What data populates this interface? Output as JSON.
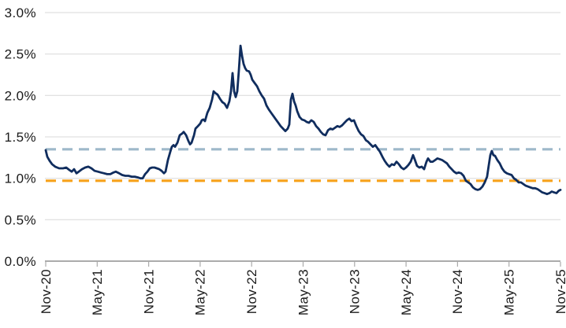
{
  "chart_data": {
    "type": "line",
    "title": "",
    "xlabel": "",
    "ylabel": "",
    "grid": true,
    "legend_position": "none",
    "colors": {
      "line": "#102D5E",
      "upper_reference": "#9EB9CA",
      "lower_reference": "#F7A11A",
      "gridline": "#D9D9D9",
      "axis": "#ABABAB",
      "text": "#1A1A1A",
      "background": "#FFFFFF"
    },
    "y_axis": {
      "min": 0.0,
      "max": 3.0,
      "step": 0.5,
      "unit": "%",
      "ticks": [
        {
          "value": 0.0,
          "label": "0.0%"
        },
        {
          "value": 0.5,
          "label": "0.5%"
        },
        {
          "value": 1.0,
          "label": "1.0%"
        },
        {
          "value": 1.5,
          "label": "1.5%"
        },
        {
          "value": 2.0,
          "label": "2.0%"
        },
        {
          "value": 2.5,
          "label": "2.5%"
        },
        {
          "value": 3.0,
          "label": "3.0%"
        }
      ]
    },
    "x_axis": {
      "unit": "month-year",
      "range_months": 60,
      "ticks": [
        {
          "month": 0,
          "label": "Nov-20"
        },
        {
          "month": 6,
          "label": "May-21"
        },
        {
          "month": 12,
          "label": "Nov-21"
        },
        {
          "month": 18,
          "label": "May-22"
        },
        {
          "month": 24,
          "label": "Nov-22"
        },
        {
          "month": 30,
          "label": "May-23"
        },
        {
          "month": 36,
          "label": "Nov-23"
        },
        {
          "month": 42,
          "label": "May-24"
        },
        {
          "month": 48,
          "label": "Nov-24"
        },
        {
          "month": 54,
          "label": "May-25"
        },
        {
          "month": 60,
          "label": "Nov-25"
        }
      ]
    },
    "reference_lines": [
      {
        "name": "upper-dashed-average",
        "value": 1.35,
        "style": "dashed",
        "color_key": "upper_reference"
      },
      {
        "name": "lower-dashed-average",
        "value": 0.97,
        "style": "dashed",
        "color_key": "lower_reference"
      }
    ],
    "series": [
      {
        "name": "main-line",
        "color_key": "line",
        "points": [
          [
            0,
            1.34
          ],
          [
            0.18,
            1.26
          ],
          [
            0.46,
            1.21
          ],
          [
            0.74,
            1.17
          ],
          [
            1.1,
            1.14
          ],
          [
            1.56,
            1.12
          ],
          [
            2.02,
            1.12
          ],
          [
            2.39,
            1.13
          ],
          [
            2.76,
            1.1
          ],
          [
            3.03,
            1.08
          ],
          [
            3.31,
            1.11
          ],
          [
            3.58,
            1.06
          ],
          [
            3.86,
            1.08
          ],
          [
            4.23,
            1.11
          ],
          [
            4.59,
            1.13
          ],
          [
            4.96,
            1.14
          ],
          [
            5.33,
            1.12
          ],
          [
            5.7,
            1.09
          ],
          [
            6.06,
            1.08
          ],
          [
            6.43,
            1.07
          ],
          [
            6.8,
            1.06
          ],
          [
            7.17,
            1.05
          ],
          [
            7.53,
            1.05
          ],
          [
            7.9,
            1.07
          ],
          [
            8.18,
            1.08
          ],
          [
            8.55,
            1.06
          ],
          [
            8.91,
            1.04
          ],
          [
            9.28,
            1.03
          ],
          [
            9.65,
            1.03
          ],
          [
            10.02,
            1.02
          ],
          [
            10.38,
            1.02
          ],
          [
            10.75,
            1.01
          ],
          [
            11.03,
            1.0
          ],
          [
            11.3,
            1.0
          ],
          [
            11.58,
            1.05
          ],
          [
            11.85,
            1.08
          ],
          [
            12.13,
            1.12
          ],
          [
            12.4,
            1.13
          ],
          [
            12.68,
            1.13
          ],
          [
            12.96,
            1.12
          ],
          [
            13.23,
            1.11
          ],
          [
            13.51,
            1.09
          ],
          [
            13.78,
            1.06
          ],
          [
            13.97,
            1.08
          ],
          [
            14.24,
            1.22
          ],
          [
            14.52,
            1.32
          ],
          [
            14.7,
            1.38
          ],
          [
            14.89,
            1.4
          ],
          [
            15.07,
            1.38
          ],
          [
            15.35,
            1.43
          ],
          [
            15.62,
            1.52
          ],
          [
            15.9,
            1.54
          ],
          [
            16.08,
            1.56
          ],
          [
            16.36,
            1.52
          ],
          [
            16.63,
            1.45
          ],
          [
            16.82,
            1.41
          ],
          [
            17,
            1.43
          ],
          [
            17.28,
            1.52
          ],
          [
            17.46,
            1.6
          ],
          [
            17.74,
            1.63
          ],
          [
            18.01,
            1.66
          ],
          [
            18.19,
            1.7
          ],
          [
            18.38,
            1.71
          ],
          [
            18.56,
            1.69
          ],
          [
            18.84,
            1.79
          ],
          [
            19.11,
            1.85
          ],
          [
            19.39,
            1.95
          ],
          [
            19.57,
            2.05
          ],
          [
            19.76,
            2.03
          ],
          [
            20.03,
            2.01
          ],
          [
            20.31,
            1.96
          ],
          [
            20.58,
            1.92
          ],
          [
            20.86,
            1.9
          ],
          [
            21.13,
            1.85
          ],
          [
            21.41,
            1.93
          ],
          [
            21.59,
            2.05
          ],
          [
            21.78,
            2.27
          ],
          [
            21.96,
            2.05
          ],
          [
            22.14,
            1.98
          ],
          [
            22.33,
            2.05
          ],
          [
            22.51,
            2.3
          ],
          [
            22.7,
            2.6
          ],
          [
            22.88,
            2.48
          ],
          [
            23.06,
            2.38
          ],
          [
            23.25,
            2.33
          ],
          [
            23.43,
            2.3
          ],
          [
            23.71,
            2.29
          ],
          [
            23.89,
            2.25
          ],
          [
            24.07,
            2.19
          ],
          [
            24.35,
            2.15
          ],
          [
            24.63,
            2.11
          ],
          [
            24.9,
            2.05
          ],
          [
            25.18,
            2.0
          ],
          [
            25.45,
            1.96
          ],
          [
            25.73,
            1.88
          ],
          [
            26,
            1.83
          ],
          [
            26.28,
            1.79
          ],
          [
            26.55,
            1.75
          ],
          [
            26.83,
            1.71
          ],
          [
            27.11,
            1.67
          ],
          [
            27.38,
            1.63
          ],
          [
            27.66,
            1.6
          ],
          [
            27.93,
            1.57
          ],
          [
            28.21,
            1.6
          ],
          [
            28.39,
            1.65
          ],
          [
            28.58,
            1.95
          ],
          [
            28.76,
            2.02
          ],
          [
            28.94,
            1.93
          ],
          [
            29.13,
            1.88
          ],
          [
            29.31,
            1.81
          ],
          [
            29.59,
            1.74
          ],
          [
            29.86,
            1.71
          ],
          [
            30.14,
            1.7
          ],
          [
            30.41,
            1.68
          ],
          [
            30.69,
            1.67
          ],
          [
            30.96,
            1.7
          ],
          [
            31.24,
            1.68
          ],
          [
            31.52,
            1.63
          ],
          [
            31.79,
            1.6
          ],
          [
            32.07,
            1.56
          ],
          [
            32.34,
            1.53
          ],
          [
            32.62,
            1.52
          ],
          [
            32.9,
            1.58
          ],
          [
            33.17,
            1.6
          ],
          [
            33.45,
            1.59
          ],
          [
            33.72,
            1.61
          ],
          [
            34,
            1.63
          ],
          [
            34.27,
            1.62
          ],
          [
            34.55,
            1.64
          ],
          [
            34.82,
            1.67
          ],
          [
            35.1,
            1.7
          ],
          [
            35.38,
            1.72
          ],
          [
            35.65,
            1.69
          ],
          [
            35.93,
            1.7
          ],
          [
            36.2,
            1.63
          ],
          [
            36.48,
            1.57
          ],
          [
            36.75,
            1.53
          ],
          [
            37.03,
            1.51
          ],
          [
            37.31,
            1.46
          ],
          [
            37.58,
            1.44
          ],
          [
            37.86,
            1.41
          ],
          [
            38.13,
            1.38
          ],
          [
            38.41,
            1.4
          ],
          [
            38.68,
            1.36
          ],
          [
            38.96,
            1.32
          ],
          [
            39.24,
            1.26
          ],
          [
            39.51,
            1.21
          ],
          [
            39.79,
            1.17
          ],
          [
            40.06,
            1.14
          ],
          [
            40.34,
            1.17
          ],
          [
            40.61,
            1.16
          ],
          [
            40.89,
            1.2
          ],
          [
            41.16,
            1.17
          ],
          [
            41.44,
            1.13
          ],
          [
            41.72,
            1.11
          ],
          [
            41.99,
            1.13
          ],
          [
            42.27,
            1.16
          ],
          [
            42.54,
            1.2
          ],
          [
            42.82,
            1.28
          ],
          [
            43,
            1.23
          ],
          [
            43.28,
            1.15
          ],
          [
            43.55,
            1.13
          ],
          [
            43.83,
            1.14
          ],
          [
            44.1,
            1.11
          ],
          [
            44.38,
            1.2
          ],
          [
            44.56,
            1.24
          ],
          [
            44.84,
            1.2
          ],
          [
            45.11,
            1.2
          ],
          [
            45.39,
            1.22
          ],
          [
            45.66,
            1.24
          ],
          [
            45.94,
            1.23
          ],
          [
            46.21,
            1.22
          ],
          [
            46.49,
            1.2
          ],
          [
            46.77,
            1.18
          ],
          [
            47.04,
            1.14
          ],
          [
            47.32,
            1.11
          ],
          [
            47.59,
            1.08
          ],
          [
            47.87,
            1.06
          ],
          [
            48.14,
            1.07
          ],
          [
            48.42,
            1.06
          ],
          [
            48.7,
            1.03
          ],
          [
            48.97,
            0.97
          ],
          [
            49.25,
            0.95
          ],
          [
            49.52,
            0.93
          ],
          [
            49.8,
            0.89
          ],
          [
            50.07,
            0.87
          ],
          [
            50.35,
            0.86
          ],
          [
            50.62,
            0.87
          ],
          [
            50.9,
            0.9
          ],
          [
            51.17,
            0.95
          ],
          [
            51.45,
            1.02
          ],
          [
            51.63,
            1.15
          ],
          [
            51.82,
            1.28
          ],
          [
            52,
            1.33
          ],
          [
            52.18,
            1.28
          ],
          [
            52.37,
            1.27
          ],
          [
            52.64,
            1.22
          ],
          [
            52.92,
            1.18
          ],
          [
            53.19,
            1.12
          ],
          [
            53.47,
            1.08
          ],
          [
            53.74,
            1.06
          ],
          [
            54.02,
            1.05
          ],
          [
            54.3,
            1.04
          ],
          [
            54.57,
            1.0
          ],
          [
            54.85,
            0.98
          ],
          [
            55.12,
            0.95
          ],
          [
            55.4,
            0.95
          ],
          [
            55.67,
            0.93
          ],
          [
            55.95,
            0.91
          ],
          [
            56.22,
            0.9
          ],
          [
            56.5,
            0.89
          ],
          [
            56.77,
            0.88
          ],
          [
            57.05,
            0.88
          ],
          [
            57.32,
            0.87
          ],
          [
            57.6,
            0.85
          ],
          [
            57.88,
            0.83
          ],
          [
            58.15,
            0.82
          ],
          [
            58.43,
            0.81
          ],
          [
            58.7,
            0.82
          ],
          [
            58.98,
            0.84
          ],
          [
            59.25,
            0.83
          ],
          [
            59.53,
            0.82
          ],
          [
            59.8,
            0.85
          ],
          [
            60,
            0.86
          ]
        ]
      }
    ]
  }
}
